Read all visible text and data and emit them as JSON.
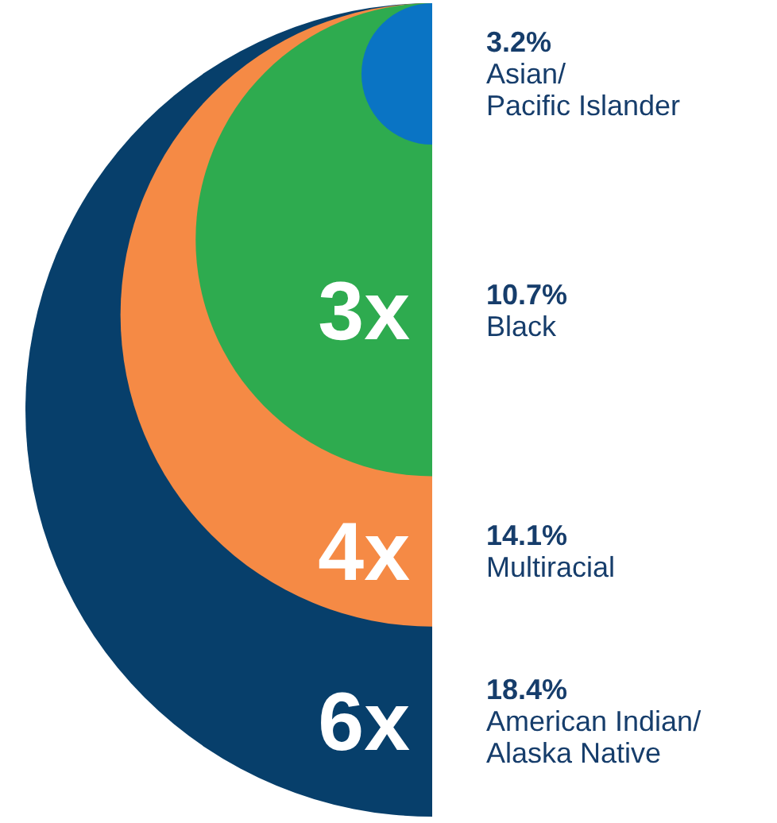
{
  "chart_data": {
    "type": "other",
    "categories": [
      "Asian/Pacific Islander",
      "Black",
      "Multiracial",
      "American Indian/Alaska Native"
    ],
    "values": [
      3.2,
      10.7,
      14.1,
      18.4
    ],
    "value_labels": [
      "3.2%",
      "10.7%",
      "14.1%",
      "18.4%"
    ],
    "colors": [
      "#0a74c4",
      "#2eab4f",
      "#f58a45",
      "#073f6b"
    ],
    "annotations": [
      "3x",
      "4x",
      "6x"
    ]
  }
}
